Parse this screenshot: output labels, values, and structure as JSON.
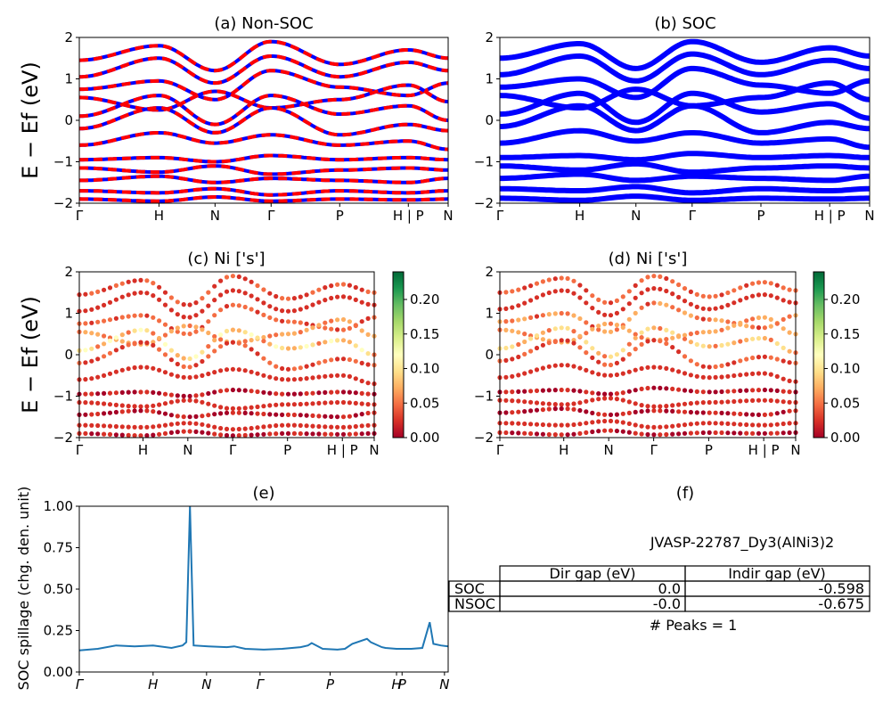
{
  "colors": {
    "nonsoc_a": "#ff0000",
    "nonsoc_b": "#0000ff",
    "soc": "#0000ff",
    "spillage_line": "#1f77b4",
    "colormap": [
      "#a50026",
      "#d73027",
      "#f46d43",
      "#fdae61",
      "#fee08b",
      "#ffffbf",
      "#d9ef8b",
      "#a6d96a",
      "#66bd63",
      "#1a9850",
      "#006837"
    ]
  },
  "kpath": {
    "labels": [
      "Γ",
      "H",
      "N",
      "Γ",
      "P",
      "H | P",
      "N"
    ],
    "fractions": [
      0,
      0.216,
      0.368,
      0.52,
      0.706,
      0.892,
      1.0
    ],
    "spillage_labels": [
      "Γ",
      "H",
      "N",
      "Γ",
      "P",
      "H",
      "P",
      "N"
    ],
    "spillage_fractions": [
      0,
      0.2,
      0.345,
      0.49,
      0.68,
      0.86,
      0.875,
      0.99
    ]
  },
  "chart_data": [
    {
      "id": "a",
      "type": "line",
      "title": "(a) Non-SOC",
      "ylabel": "E − Ef (eV)",
      "ylim": [
        -2,
        2
      ],
      "yticks": [
        "2",
        "1",
        "0",
        "−1",
        "−2"
      ],
      "series": [
        {
          "values": [
            1.45,
            1.8,
            1.2,
            1.9,
            1.35,
            1.7,
            1.5
          ]
        },
        {
          "values": [
            1.05,
            1.5,
            0.9,
            1.55,
            1.05,
            1.4,
            1.2
          ]
        },
        {
          "values": [
            0.75,
            0.95,
            0.5,
            1.2,
            0.8,
            0.6,
            0.9
          ]
        },
        {
          "values": [
            0.55,
            0.25,
            0.7,
            0.3,
            0.5,
            0.85,
            0.45
          ]
        },
        {
          "values": [
            0.1,
            0.6,
            -0.1,
            0.6,
            0.15,
            0.35,
            0.0
          ]
        },
        {
          "values": [
            -0.2,
            0.3,
            -0.3,
            0.3,
            -0.35,
            -0.1,
            -0.25
          ]
        },
        {
          "values": [
            -0.6,
            -0.3,
            -0.55,
            -0.35,
            -0.6,
            -0.5,
            -0.7
          ]
        },
        {
          "values": [
            -0.95,
            -0.9,
            -1.0,
            -0.85,
            -0.95,
            -0.9,
            -0.95
          ]
        },
        {
          "values": [
            -1.15,
            -1.25,
            -1.1,
            -1.3,
            -1.2,
            -1.15,
            -1.2
          ]
        },
        {
          "values": [
            -1.45,
            -1.35,
            -1.5,
            -1.4,
            -1.45,
            -1.5,
            -1.4
          ]
        },
        {
          "values": [
            -1.7,
            -1.75,
            -1.65,
            -1.8,
            -1.7,
            -1.75,
            -1.7
          ]
        },
        {
          "values": [
            -1.9,
            -1.95,
            -1.85,
            -1.95,
            -1.9,
            -1.92,
            -1.9
          ]
        }
      ]
    },
    {
      "id": "b",
      "type": "line",
      "title": "(b) SOC",
      "ylim": [
        -2,
        2
      ],
      "yticks": [
        "2",
        "1",
        "0",
        "−1",
        "−2"
      ],
      "series": [
        {
          "values": [
            1.5,
            1.85,
            1.25,
            1.9,
            1.4,
            1.75,
            1.55
          ]
        },
        {
          "values": [
            1.1,
            1.55,
            0.95,
            1.6,
            1.1,
            1.45,
            1.25
          ]
        },
        {
          "values": [
            0.8,
            1.0,
            0.55,
            1.25,
            0.85,
            0.65,
            0.95
          ]
        },
        {
          "values": [
            0.6,
            0.3,
            0.75,
            0.35,
            0.55,
            0.9,
            0.5
          ]
        },
        {
          "values": [
            0.15,
            0.65,
            -0.05,
            0.65,
            0.2,
            0.4,
            0.05
          ]
        },
        {
          "values": [
            -0.15,
            0.35,
            -0.25,
            0.35,
            -0.3,
            -0.05,
            -0.2
          ]
        },
        {
          "values": [
            -0.55,
            -0.25,
            -0.5,
            -0.3,
            -0.55,
            -0.45,
            -0.65
          ]
        },
        {
          "values": [
            -0.9,
            -0.85,
            -0.95,
            -0.8,
            -0.9,
            -0.85,
            -0.9
          ]
        },
        {
          "values": [
            -1.1,
            -1.2,
            -1.05,
            -1.25,
            -1.15,
            -1.1,
            -1.15
          ]
        },
        {
          "values": [
            -1.4,
            -1.3,
            -1.45,
            -1.35,
            -1.4,
            -1.45,
            -1.35
          ]
        },
        {
          "values": [
            -1.65,
            -1.7,
            -1.6,
            -1.75,
            -1.65,
            -1.7,
            -1.65
          ]
        },
        {
          "values": [
            -1.88,
            -1.93,
            -1.83,
            -1.93,
            -1.88,
            -1.9,
            -1.88
          ]
        }
      ]
    },
    {
      "id": "c",
      "type": "scatter",
      "title": "(c)  Ni ['s']",
      "ylabel": "E − Ef (eV)",
      "ylim": [
        -2,
        2
      ],
      "yticks": [
        "2",
        "1",
        "0",
        "−1",
        "−2"
      ],
      "colorbar_ticks": [
        "0.20",
        "0.15",
        "0.10",
        "0.05",
        "0.00"
      ],
      "colorbar_range": [
        0,
        0.24
      ],
      "series": [
        {
          "values": [
            1.45,
            1.8,
            1.2,
            1.9,
            1.35,
            1.7,
            1.5
          ],
          "weight": 0.03
        },
        {
          "values": [
            1.05,
            1.5,
            0.9,
            1.55,
            1.05,
            1.4,
            1.2
          ],
          "weight": 0.02
        },
        {
          "values": [
            0.75,
            0.95,
            0.5,
            1.2,
            0.8,
            0.6,
            0.9
          ],
          "weight": 0.04
        },
        {
          "values": [
            0.55,
            0.25,
            0.7,
            0.3,
            0.5,
            0.85,
            0.45
          ],
          "weight": 0.06
        },
        {
          "values": [
            0.1,
            0.6,
            -0.1,
            0.6,
            0.15,
            0.35,
            0.0
          ],
          "weight": 0.08
        },
        {
          "values": [
            -0.2,
            0.3,
            -0.3,
            0.3,
            -0.35,
            -0.1,
            -0.25
          ],
          "weight": 0.03
        },
        {
          "values": [
            -0.6,
            -0.3,
            -0.55,
            -0.35,
            -0.6,
            -0.5,
            -0.7
          ],
          "weight": 0.02
        },
        {
          "values": [
            -0.95,
            -0.9,
            -1.0,
            -0.85,
            -0.95,
            -0.9,
            -0.95
          ],
          "weight": 0.01
        },
        {
          "values": [
            -1.15,
            -1.25,
            -1.1,
            -1.3,
            -1.2,
            -1.15,
            -1.2
          ],
          "weight": 0.02
        },
        {
          "values": [
            -1.45,
            -1.35,
            -1.5,
            -1.4,
            -1.45,
            -1.5,
            -1.4
          ],
          "weight": 0.01
        },
        {
          "values": [
            -1.7,
            -1.75,
            -1.65,
            -1.8,
            -1.7,
            -1.75,
            -1.7
          ],
          "weight": 0.02
        },
        {
          "values": [
            -1.9,
            -1.95,
            -1.85,
            -1.95,
            -1.9,
            -1.92,
            -1.9
          ],
          "weight": 0.01
        }
      ]
    },
    {
      "id": "d",
      "type": "scatter",
      "title": "(d) Ni ['s']",
      "ylim": [
        -2,
        2
      ],
      "yticks": [
        "2",
        "1",
        "0",
        "−1",
        "−2"
      ],
      "colorbar_ticks": [
        "0.20",
        "0.15",
        "0.10",
        "0.05",
        "0.00"
      ],
      "colorbar_range": [
        0,
        0.24
      ],
      "series": [
        {
          "values": [
            1.5,
            1.85,
            1.25,
            1.9,
            1.4,
            1.75,
            1.55
          ],
          "weight": 0.04
        },
        {
          "values": [
            1.1,
            1.55,
            0.95,
            1.6,
            1.1,
            1.45,
            1.25
          ],
          "weight": 0.02
        },
        {
          "values": [
            0.8,
            1.0,
            0.55,
            1.25,
            0.85,
            0.65,
            0.95
          ],
          "weight": 0.05
        },
        {
          "values": [
            0.6,
            0.3,
            0.75,
            0.35,
            0.55,
            0.9,
            0.5
          ],
          "weight": 0.06
        },
        {
          "values": [
            0.15,
            0.65,
            -0.05,
            0.65,
            0.2,
            0.4,
            0.05
          ],
          "weight": 0.07
        },
        {
          "values": [
            -0.15,
            0.35,
            -0.25,
            0.35,
            -0.3,
            -0.05,
            -0.2
          ],
          "weight": 0.03
        },
        {
          "values": [
            -0.55,
            -0.25,
            -0.5,
            -0.3,
            -0.55,
            -0.45,
            -0.65
          ],
          "weight": 0.02
        },
        {
          "values": [
            -0.9,
            -0.85,
            -0.95,
            -0.8,
            -0.9,
            -0.85,
            -0.9
          ],
          "weight": 0.01
        },
        {
          "values": [
            -1.1,
            -1.2,
            -1.05,
            -1.25,
            -1.15,
            -1.1,
            -1.15
          ],
          "weight": 0.02
        },
        {
          "values": [
            -1.4,
            -1.3,
            -1.45,
            -1.35,
            -1.4,
            -1.45,
            -1.35
          ],
          "weight": 0.01
        },
        {
          "values": [
            -1.65,
            -1.7,
            -1.6,
            -1.75,
            -1.65,
            -1.7,
            -1.65
          ],
          "weight": 0.02
        },
        {
          "values": [
            -1.88,
            -1.93,
            -1.83,
            -1.93,
            -1.88,
            -1.9,
            -1.88
          ],
          "weight": 0.01
        }
      ]
    },
    {
      "id": "e",
      "type": "line",
      "title": "(e)",
      "ylabel": "SOC spillage (chg. den. unit)",
      "ylim": [
        0,
        1
      ],
      "yticks": [
        "1.00",
        "0.75",
        "0.50",
        "0.25",
        "0.00"
      ],
      "x": [
        0,
        0.05,
        0.1,
        0.15,
        0.2,
        0.25,
        0.28,
        0.29,
        0.3,
        0.31,
        0.35,
        0.4,
        0.42,
        0.45,
        0.5,
        0.55,
        0.6,
        0.62,
        0.63,
        0.66,
        0.7,
        0.72,
        0.74,
        0.78,
        0.79,
        0.82,
        0.83,
        0.86,
        0.9,
        0.93,
        0.95,
        0.96,
        0.98,
        1.0
      ],
      "y": [
        0.13,
        0.14,
        0.16,
        0.155,
        0.16,
        0.145,
        0.16,
        0.18,
        1.0,
        0.16,
        0.155,
        0.15,
        0.155,
        0.14,
        0.135,
        0.14,
        0.15,
        0.16,
        0.175,
        0.14,
        0.135,
        0.14,
        0.17,
        0.2,
        0.18,
        0.15,
        0.145,
        0.14,
        0.14,
        0.145,
        0.3,
        0.17,
        0.16,
        0.155
      ]
    }
  ],
  "panel_f": {
    "title": "(f)",
    "material": "JVASP-22787_Dy3(AlNi3)2",
    "headers": [
      "Dir gap (eV)",
      "Indir gap (eV)"
    ],
    "rows": [
      {
        "label": "SOC",
        "dir": "0.0",
        "indir": "-0.598"
      },
      {
        "label": "NSOC",
        "dir": "-0.0",
        "indir": "-0.675"
      }
    ],
    "peaks": "# Peaks = 1"
  }
}
